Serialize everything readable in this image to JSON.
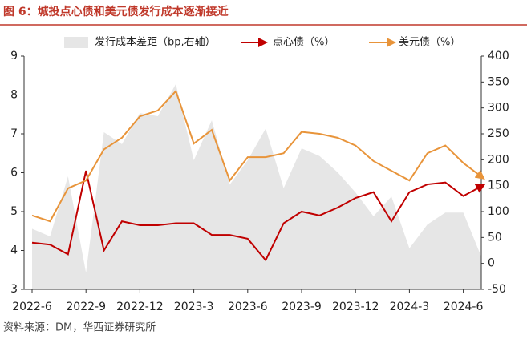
{
  "title": "图 6：城投点心债和美元债发行成本逐渐接近",
  "source": "资料来源：DM，华西证券研究所",
  "chart_data": {
    "type": "combo",
    "categories": [
      "2022-6",
      null,
      null,
      "2022-9",
      null,
      null,
      "2022-12",
      null,
      null,
      "2023-3",
      null,
      null,
      "2023-6",
      null,
      null,
      "2023-9",
      null,
      null,
      "2023-12",
      null,
      null,
      "2024-3",
      null,
      null,
      "2024-6",
      null
    ],
    "series": [
      {
        "name": "发行成本差距（bp,右轴）",
        "type": "area",
        "axis": "y2",
        "color": "#e6e6e6",
        "values": [
          67,
          52,
          168,
          -18,
          253,
          230,
          290,
          284,
          346,
          199,
          276,
          152,
          199,
          260,
          145,
          222,
          207,
          176,
          137,
          91,
          129,
          29,
          75,
          98,
          98,
          13
        ]
      },
      {
        "name": "点心债（%）",
        "type": "line",
        "color": "#c00000",
        "values": [
          4.2,
          4.15,
          3.9,
          6.05,
          4.0,
          4.75,
          4.65,
          4.65,
          4.7,
          4.7,
          4.4,
          4.4,
          4.3,
          3.75,
          4.7,
          5.0,
          4.9,
          5.1,
          5.35,
          5.5,
          4.75,
          5.5,
          5.7,
          5.75,
          5.4,
          5.65
        ]
      },
      {
        "name": "美元债（%）",
        "type": "line",
        "color": "#e8943a",
        "values": [
          4.9,
          4.75,
          5.6,
          5.8,
          6.6,
          6.9,
          7.45,
          7.6,
          8.1,
          6.75,
          7.1,
          5.8,
          6.4,
          6.4,
          6.5,
          7.05,
          7.0,
          6.9,
          6.7,
          6.3,
          6.05,
          5.8,
          6.5,
          6.7,
          6.25,
          5.9
        ]
      }
    ],
    "ylim": [
      3,
      9
    ],
    "yticks": [
      3,
      4,
      5,
      6,
      7,
      8,
      9
    ],
    "y2lim": [
      -50,
      400
    ],
    "y2ticks": [
      -50,
      0,
      50,
      100,
      150,
      200,
      250,
      300,
      350,
      400
    ]
  }
}
